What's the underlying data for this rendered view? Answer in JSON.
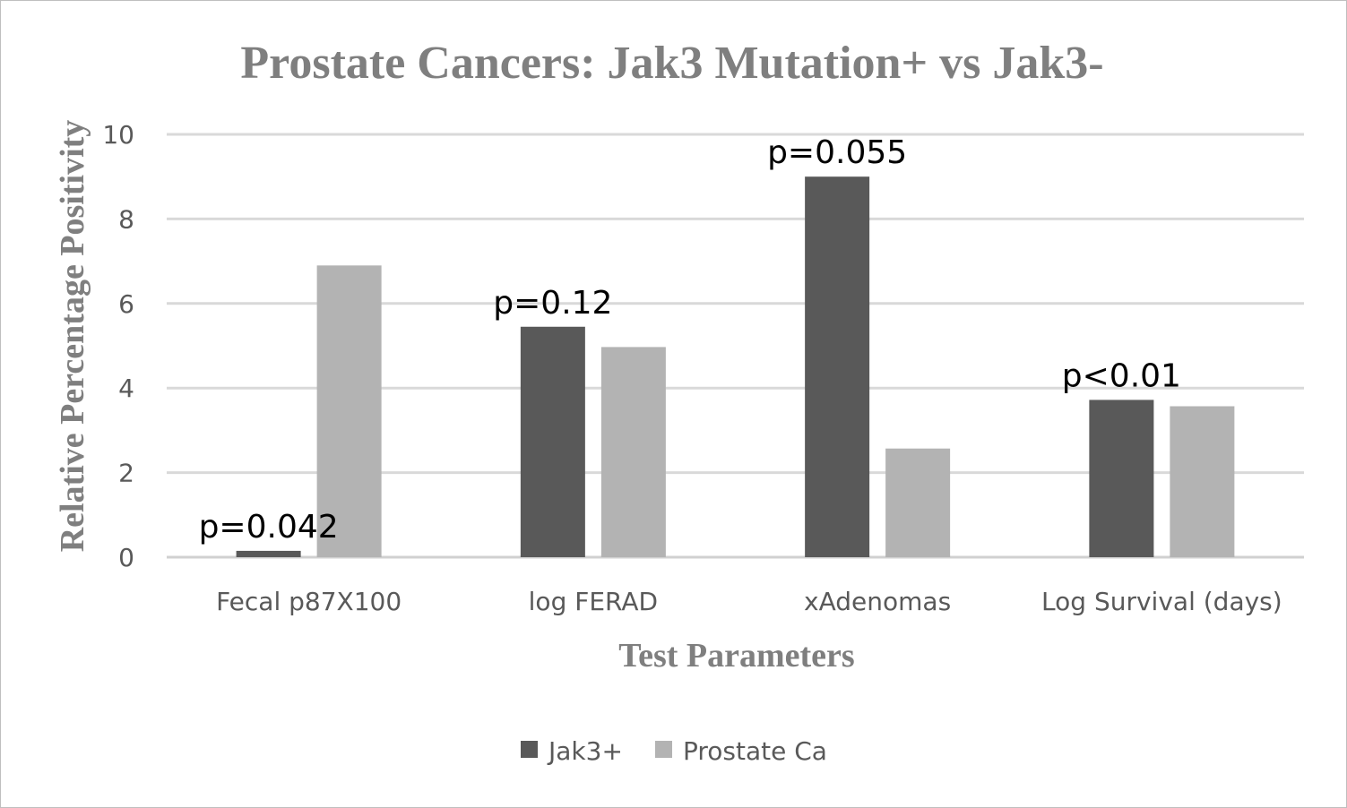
{
  "chart_data": {
    "type": "bar",
    "title": "Prostate Cancers: Jak3 Mutation+ vs Jak3-",
    "xlabel": "Test Parameters",
    "ylabel": "Relative Percentage Positivity",
    "ylim": [
      0,
      10
    ],
    "yticks": [
      "0",
      "2",
      "4",
      "6",
      "8",
      "10"
    ],
    "grid": true,
    "legend_position": "bottom",
    "categories": [
      "Fecal p87X100",
      "log FERAD",
      "xAdenomas",
      "Log Survival (days)"
    ],
    "series": [
      {
        "name": "Jak3+",
        "color": "#595959",
        "values": [
          0.15,
          5.45,
          9.0,
          3.72
        ]
      },
      {
        "name": "Prostate Ca",
        "color": "#b3b3b3",
        "values": [
          6.9,
          4.97,
          2.57,
          3.57
        ]
      }
    ],
    "annotations": [
      "p=0.042",
      "p=0.12",
      "p=0.055",
      "p<0.01"
    ],
    "gridline_color": "#d9d9d9"
  }
}
